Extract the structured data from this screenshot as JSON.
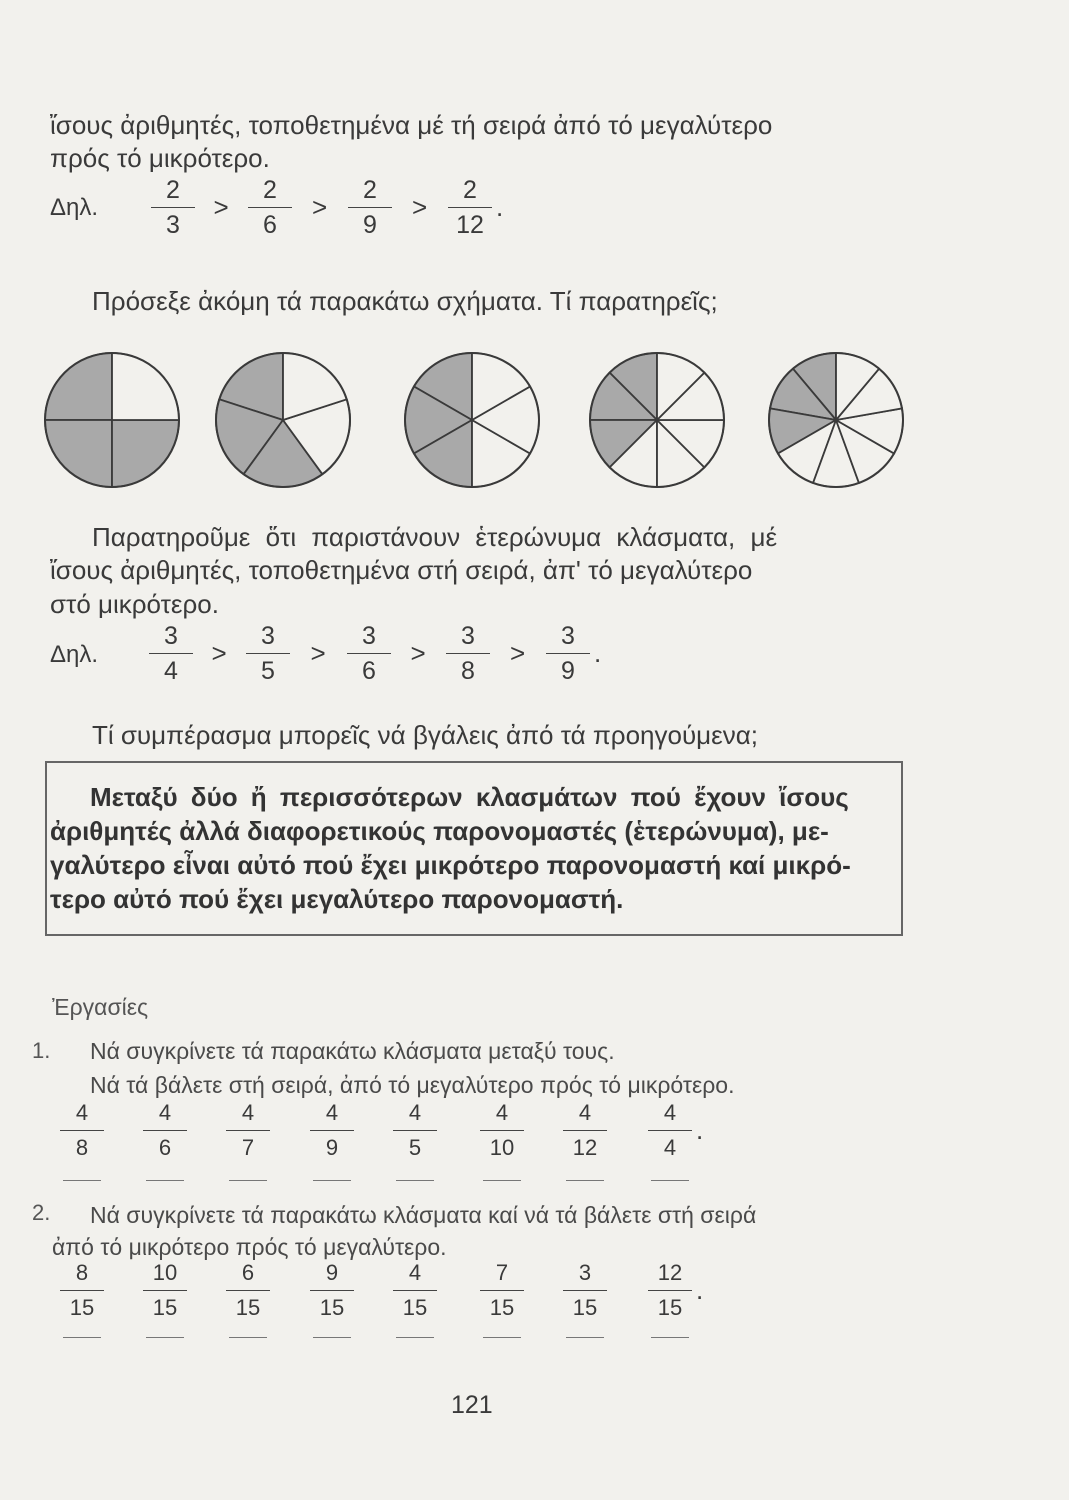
{
  "intro": {
    "line1": "ἴσους ἀριθμητές, τοποθετημένα μέ τή σειρά ἀπό τό μεγαλύτερο",
    "line2": "πρός τό μικρότερο.",
    "dhl_label": "Δηλ.",
    "fractions": [
      {
        "n": "2",
        "d": "3"
      },
      {
        "n": "2",
        "d": "6"
      },
      {
        "n": "2",
        "d": "9"
      },
      {
        "n": "2",
        "d": "12"
      }
    ],
    "relation": ">",
    "end": "."
  },
  "prompt": "Πρόσεξε ἀκόμη τά παρακάτω σχήματα. Τί παρατηρεῖς;",
  "pies": [
    {
      "slices": 4,
      "shaded": 3
    },
    {
      "slices": 5,
      "shaded": 3
    },
    {
      "slices": 6,
      "shaded": 3
    },
    {
      "slices": 8,
      "shaded": 3
    },
    {
      "slices": 9,
      "shaded": 3
    }
  ],
  "colors": {
    "shade": "#a9a9a9",
    "ink": "#3a3a3a",
    "paper": "#f2f1ed"
  },
  "observation": {
    "line1": "Παρατηροῦμε ὅτι παριστάνουν ἑτερώνυμα κλάσματα, μέ",
    "line2": "ἴσους ἀριθμητές, τοποθετημένα στή σειρά, ἀπ' τό μεγαλύτερο",
    "line3": "στό μικρότερο.",
    "dhl_label": "Δηλ.",
    "fractions": [
      {
        "n": "3",
        "d": "4"
      },
      {
        "n": "3",
        "d": "5"
      },
      {
        "n": "3",
        "d": "6"
      },
      {
        "n": "3",
        "d": "8"
      },
      {
        "n": "3",
        "d": "9"
      }
    ],
    "relation": ">",
    "end": "."
  },
  "question": "Τί συμπέρασμα μπορεῖς νά βγάλεις ἀπό τά προηγούμενα;",
  "rule": {
    "line1": "Μεταξύ δύο ἤ περισσότερων κλασμάτων πού ἔχουν ἴσους",
    "line2": "ἀριθμητές ἀλλά διαφορετικούς παρονομαστές (ἑτερώνυμα), με-",
    "line3": "γαλύτερο εἶναι αὐτό πού ἔχει μικρότερο παρονομαστή καί μικρό-",
    "line4": "τερο αὐτό πού ἔχει μεγαλύτερο παρονομαστή."
  },
  "exercises": {
    "heading": "Ἐργασίες",
    "ex1": {
      "number": "1.",
      "line1": "Νά συγκρίνετε τά παρακάτω κλάσματα μεταξύ τους.",
      "line2": "Νά τά βάλετε στή σειρά, ἀπό τό μεγαλύτερο πρός τό μικρότερο.",
      "fractions": [
        {
          "n": "4",
          "d": "8"
        },
        {
          "n": "4",
          "d": "6"
        },
        {
          "n": "4",
          "d": "7"
        },
        {
          "n": "4",
          "d": "9"
        },
        {
          "n": "4",
          "d": "5"
        },
        {
          "n": "4",
          "d": "10"
        },
        {
          "n": "4",
          "d": "12"
        },
        {
          "n": "4",
          "d": "4"
        }
      ],
      "end": "."
    },
    "ex2": {
      "number": "2.",
      "line1": "Νά συγκρίνετε τά παρακάτω κλάσματα καί νά τά βάλετε στή σειρά",
      "line2": "ἀπό τό μικρότερο πρός τό μεγαλύτερο.",
      "fractions": [
        {
          "n": "8",
          "d": "15"
        },
        {
          "n": "10",
          "d": "15"
        },
        {
          "n": "6",
          "d": "15"
        },
        {
          "n": "9",
          "d": "15"
        },
        {
          "n": "4",
          "d": "15"
        },
        {
          "n": "7",
          "d": "15"
        },
        {
          "n": "3",
          "d": "15"
        },
        {
          "n": "12",
          "d": "15"
        }
      ],
      "end": "."
    }
  },
  "page_number": "121"
}
